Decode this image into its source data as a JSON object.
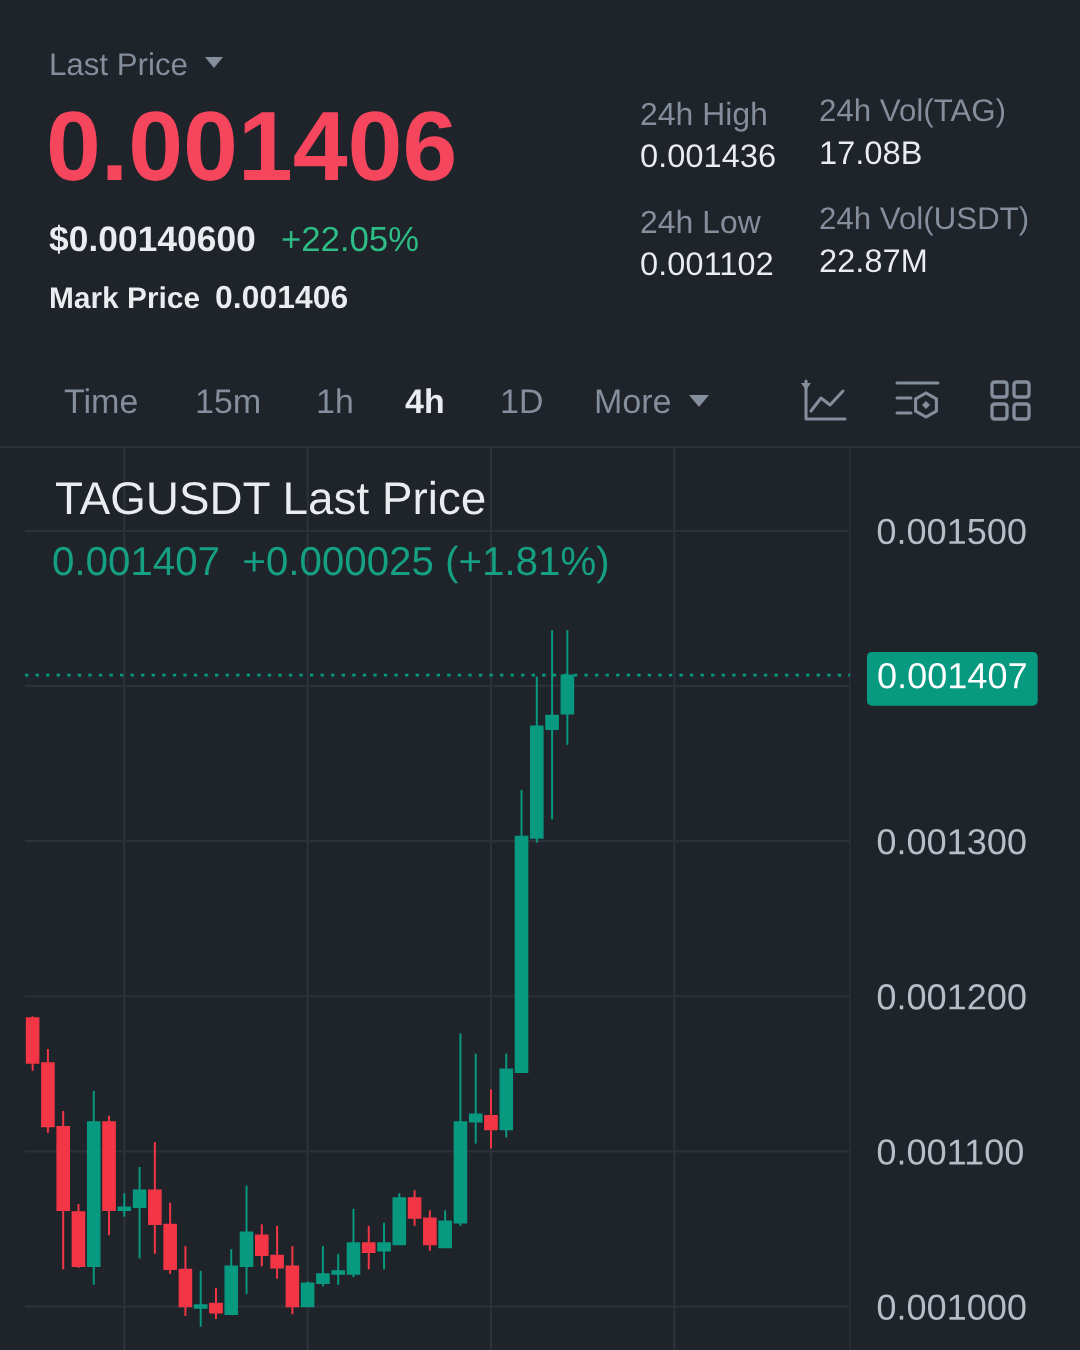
{
  "chart_data": {
    "type": "candlestick",
    "title": "TAGUSDT Last Price",
    "subtitle": "0.001407  +0.000025 (+1.81%)",
    "categories": [
      null,
      null,
      null,
      null,
      null,
      null,
      null,
      null,
      null,
      null,
      null,
      null,
      null,
      null,
      null,
      null,
      null,
      null,
      null,
      null,
      null,
      null,
      null,
      null,
      null,
      null,
      null,
      null,
      null,
      null,
      null,
      null,
      null,
      null,
      null,
      null,
      null,
      null,
      null,
      null,
      null,
      null,
      null,
      null,
      null,
      null,
      null,
      null,
      null,
      null,
      null,
      null,
      null,
      null
    ],
    "ohlc": [
      [
        0.001186,
        0.001187,
        0.001152,
        0.001157
      ],
      [
        0.001157,
        0.001166,
        0.001112,
        0.001116
      ],
      [
        0.001116,
        0.001126,
        0.001024,
        0.001062
      ],
      [
        0.001061,
        0.001066,
        0.001025,
        0.001026
      ],
      [
        0.001026,
        0.001139,
        0.001014,
        0.001119
      ],
      [
        0.001119,
        0.001123,
        0.001046,
        0.001062
      ],
      [
        0.001062,
        0.001073,
        0.001058,
        0.001064
      ],
      [
        0.001064,
        0.00109,
        0.001031,
        0.001075
      ],
      [
        0.001075,
        0.001106,
        0.001034,
        0.001053
      ],
      [
        0.001053,
        0.001067,
        0.001021,
        0.001024
      ],
      [
        0.001024,
        0.001039,
        0.000994,
        0.001
      ],
      [
        0.000999,
        0.001023,
        0.000987,
        0.001001
      ],
      [
        0.001002,
        0.001012,
        0.000992,
        0.000996
      ],
      [
        0.000995,
        0.001037,
        0.000995,
        0.001026
      ],
      [
        0.001026,
        0.001078,
        0.001008,
        0.001048
      ],
      [
        0.001046,
        0.001053,
        0.001026,
        0.001033
      ],
      [
        0.001033,
        0.001052,
        0.001018,
        0.001025
      ],
      [
        0.001026,
        0.001039,
        0.000995,
        0.001
      ],
      [
        0.001,
        0.001016,
        0.001,
        0.001015
      ],
      [
        0.001015,
        0.001039,
        0.001013,
        0.001021
      ],
      [
        0.001021,
        0.001034,
        0.001014,
        0.001023
      ],
      [
        0.001021,
        0.001063,
        0.001019,
        0.001041
      ],
      [
        0.001041,
        0.001052,
        0.001024,
        0.001035
      ],
      [
        0.001036,
        0.001054,
        0.001024,
        0.001041
      ],
      [
        0.00104,
        0.001073,
        0.00104,
        0.00107
      ],
      [
        0.00107,
        0.001075,
        0.001052,
        0.001057
      ],
      [
        0.001057,
        0.001062,
        0.001036,
        0.00104
      ],
      [
        0.001038,
        0.001062,
        0.001038,
        0.001055
      ],
      [
        0.001054,
        0.001176,
        0.001052,
        0.001119
      ],
      [
        0.001119,
        0.001163,
        0.001105,
        0.001124
      ],
      [
        0.001123,
        0.00114,
        0.001102,
        0.001114
      ],
      [
        0.001114,
        0.001163,
        0.001109,
        0.001153
      ],
      [
        0.001151,
        0.001333,
        0.001151,
        0.001303
      ],
      [
        0.001302,
        0.001406,
        0.001299,
        0.001374
      ],
      [
        0.001372,
        0.001436,
        0.001314,
        0.001381
      ],
      [
        0.001382,
        0.001436,
        0.001362,
        0.001407
      ],
      null,
      null,
      null,
      null,
      null,
      null,
      null,
      null,
      null,
      null,
      null,
      null,
      null,
      null,
      null,
      null,
      null,
      null
    ],
    "colors": [
      "#f23645",
      "#f23645",
      "#f23645",
      "#f23645",
      "#089981",
      "#f23645",
      "#089981",
      "#089981",
      "#f23645",
      "#f23645",
      "#f23645",
      "#089981",
      "#f23645",
      "#089981",
      "#089981",
      "#f23645",
      "#f23645",
      "#f23645",
      "#089981",
      "#089981",
      "#089981",
      "#089981",
      "#f23645",
      "#089981",
      "#089981",
      "#f23645",
      "#f23645",
      "#089981",
      "#089981",
      "#089981",
      "#f23645",
      "#089981",
      "#089981",
      "#089981",
      "#089981",
      "#089981",
      null,
      null,
      null,
      null,
      null,
      null,
      null,
      null,
      null,
      null,
      null,
      null,
      null,
      null,
      null,
      null,
      null,
      null
    ],
    "ylim": [
      0.000972,
      0.001554
    ],
    "yticks": [
      {
        "value": 0.001,
        "label": "0.001000"
      },
      {
        "value": 0.0011,
        "label": "0.001100"
      },
      {
        "value": 0.0012,
        "label": "0.001200"
      },
      {
        "value": 0.0013,
        "label": "0.001300"
      },
      {
        "value": 0.0014,
        "label": null
      },
      {
        "value": 0.0015,
        "label": "0.001500"
      }
    ],
    "grid": true,
    "ref_lines": [
      {
        "axis": "y",
        "value": 0.001407,
        "label": "0.001407",
        "color": "#089981",
        "line_style": "dotted"
      }
    ],
    "annotations": [
      "Last Price",
      "0.001406",
      "$0.00140600",
      "+22.05%",
      "Mark Price",
      "0.001406",
      "24h High",
      "0.001436",
      "24h Low",
      "0.001102",
      "24h Vol(TAG)",
      "17.08B",
      "24h Vol(USDT)",
      "22.87M",
      "Time",
      "15m",
      "1h",
      "4h",
      "1D",
      "More"
    ]
  }
}
